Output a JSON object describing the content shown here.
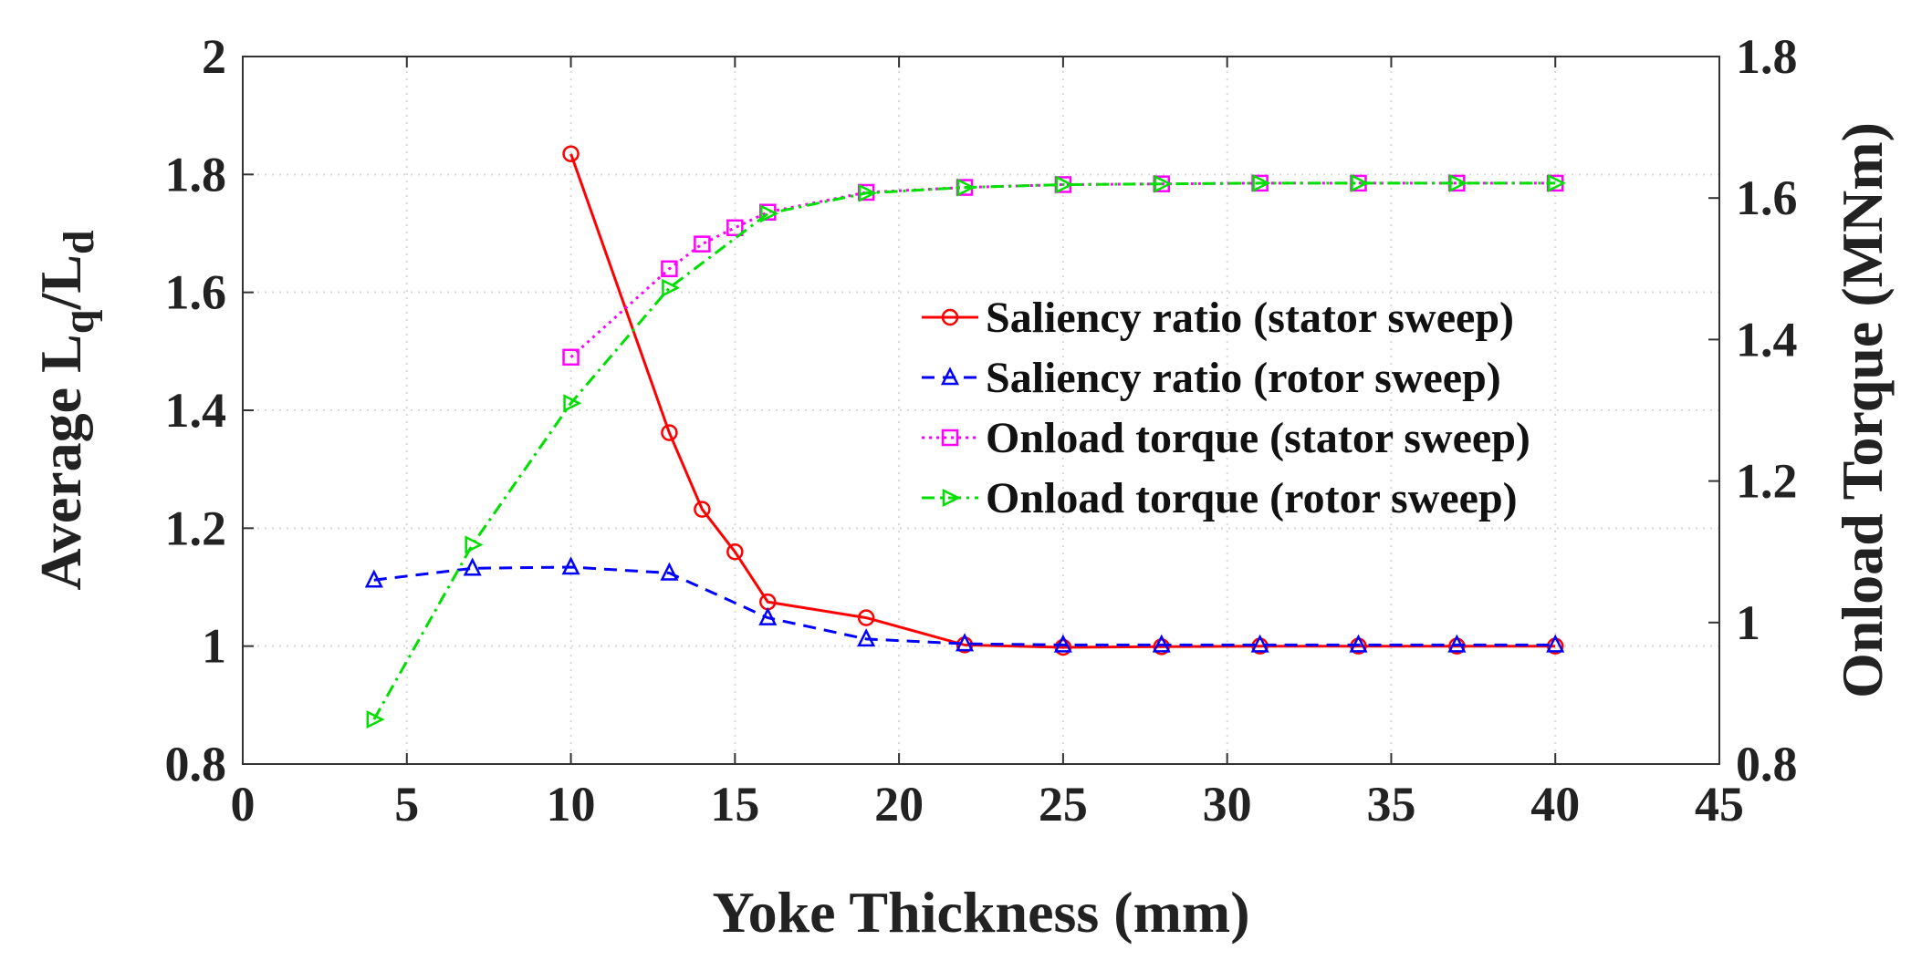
{
  "chart_data": {
    "type": "line",
    "title": "",
    "xlabel": "Yoke Thickness (mm)",
    "ylabel": {
      "prefix": "Average L",
      "sub1": "q",
      "mid": "/L",
      "sub2": "d"
    },
    "y2label": "Onload Torque (MNm)",
    "xlim": [
      0,
      45
    ],
    "ylim": [
      0.8,
      2
    ],
    "y2lim": [
      0.8,
      1.8
    ],
    "x_ticks": [
      "0",
      "5",
      "10",
      "15",
      "20",
      "25",
      "30",
      "35",
      "40",
      "45"
    ],
    "y_ticks": [
      "0.8",
      "1",
      "1.2",
      "1.4",
      "1.6",
      "1.8",
      "2"
    ],
    "y2_ticks": [
      "0.8",
      "1",
      "1.2",
      "1.4",
      "1.6",
      "1.8"
    ],
    "grid": true,
    "legend_position": "center-right",
    "series": [
      {
        "name": "Saliency ratio (stator sweep)",
        "axis": "left",
        "color": "#ff0000",
        "dash": "solid",
        "marker": "circle",
        "x": [
          10,
          13,
          14,
          15,
          16,
          19,
          22,
          25,
          28,
          31,
          34,
          37,
          40
        ],
        "y": [
          1.835,
          1.362,
          1.232,
          1.16,
          1.075,
          1.048,
          1.002,
          0.998,
          0.999,
          1.0,
          1.0,
          1.0,
          1.0
        ]
      },
      {
        "name": "Saliency ratio (rotor sweep)",
        "axis": "left",
        "color": "#0000ff",
        "dash": "dashed",
        "marker": "triangle-up",
        "x": [
          4,
          7,
          10,
          13,
          16,
          19,
          22,
          25,
          28,
          31,
          34,
          37,
          40
        ],
        "y": [
          1.112,
          1.132,
          1.134,
          1.124,
          1.048,
          1.012,
          1.004,
          1.002,
          1.002,
          1.002,
          1.002,
          1.002,
          1.002
        ]
      },
      {
        "name": "Onload torque (stator sweep)",
        "axis": "right",
        "color": "#ff00ff",
        "dash": "dotted",
        "marker": "square",
        "x": [
          10,
          13,
          14,
          15,
          16,
          19,
          22,
          25,
          28,
          31,
          34,
          37,
          40
        ],
        "y": [
          1.375,
          1.5,
          1.535,
          1.558,
          1.58,
          1.608,
          1.615,
          1.619,
          1.62,
          1.621,
          1.621,
          1.621,
          1.621
        ]
      },
      {
        "name": "Onload torque (rotor sweep)",
        "axis": "right",
        "color": "#00e000",
        "dash": "dashdot",
        "marker": "triangle-right",
        "x": [
          4,
          7,
          10,
          13,
          16,
          19,
          22,
          25,
          28,
          31,
          34,
          37,
          40
        ],
        "y": [
          0.863,
          1.11,
          1.31,
          1.473,
          1.578,
          1.607,
          1.615,
          1.619,
          1.62,
          1.621,
          1.621,
          1.621,
          1.621
        ]
      }
    ]
  }
}
